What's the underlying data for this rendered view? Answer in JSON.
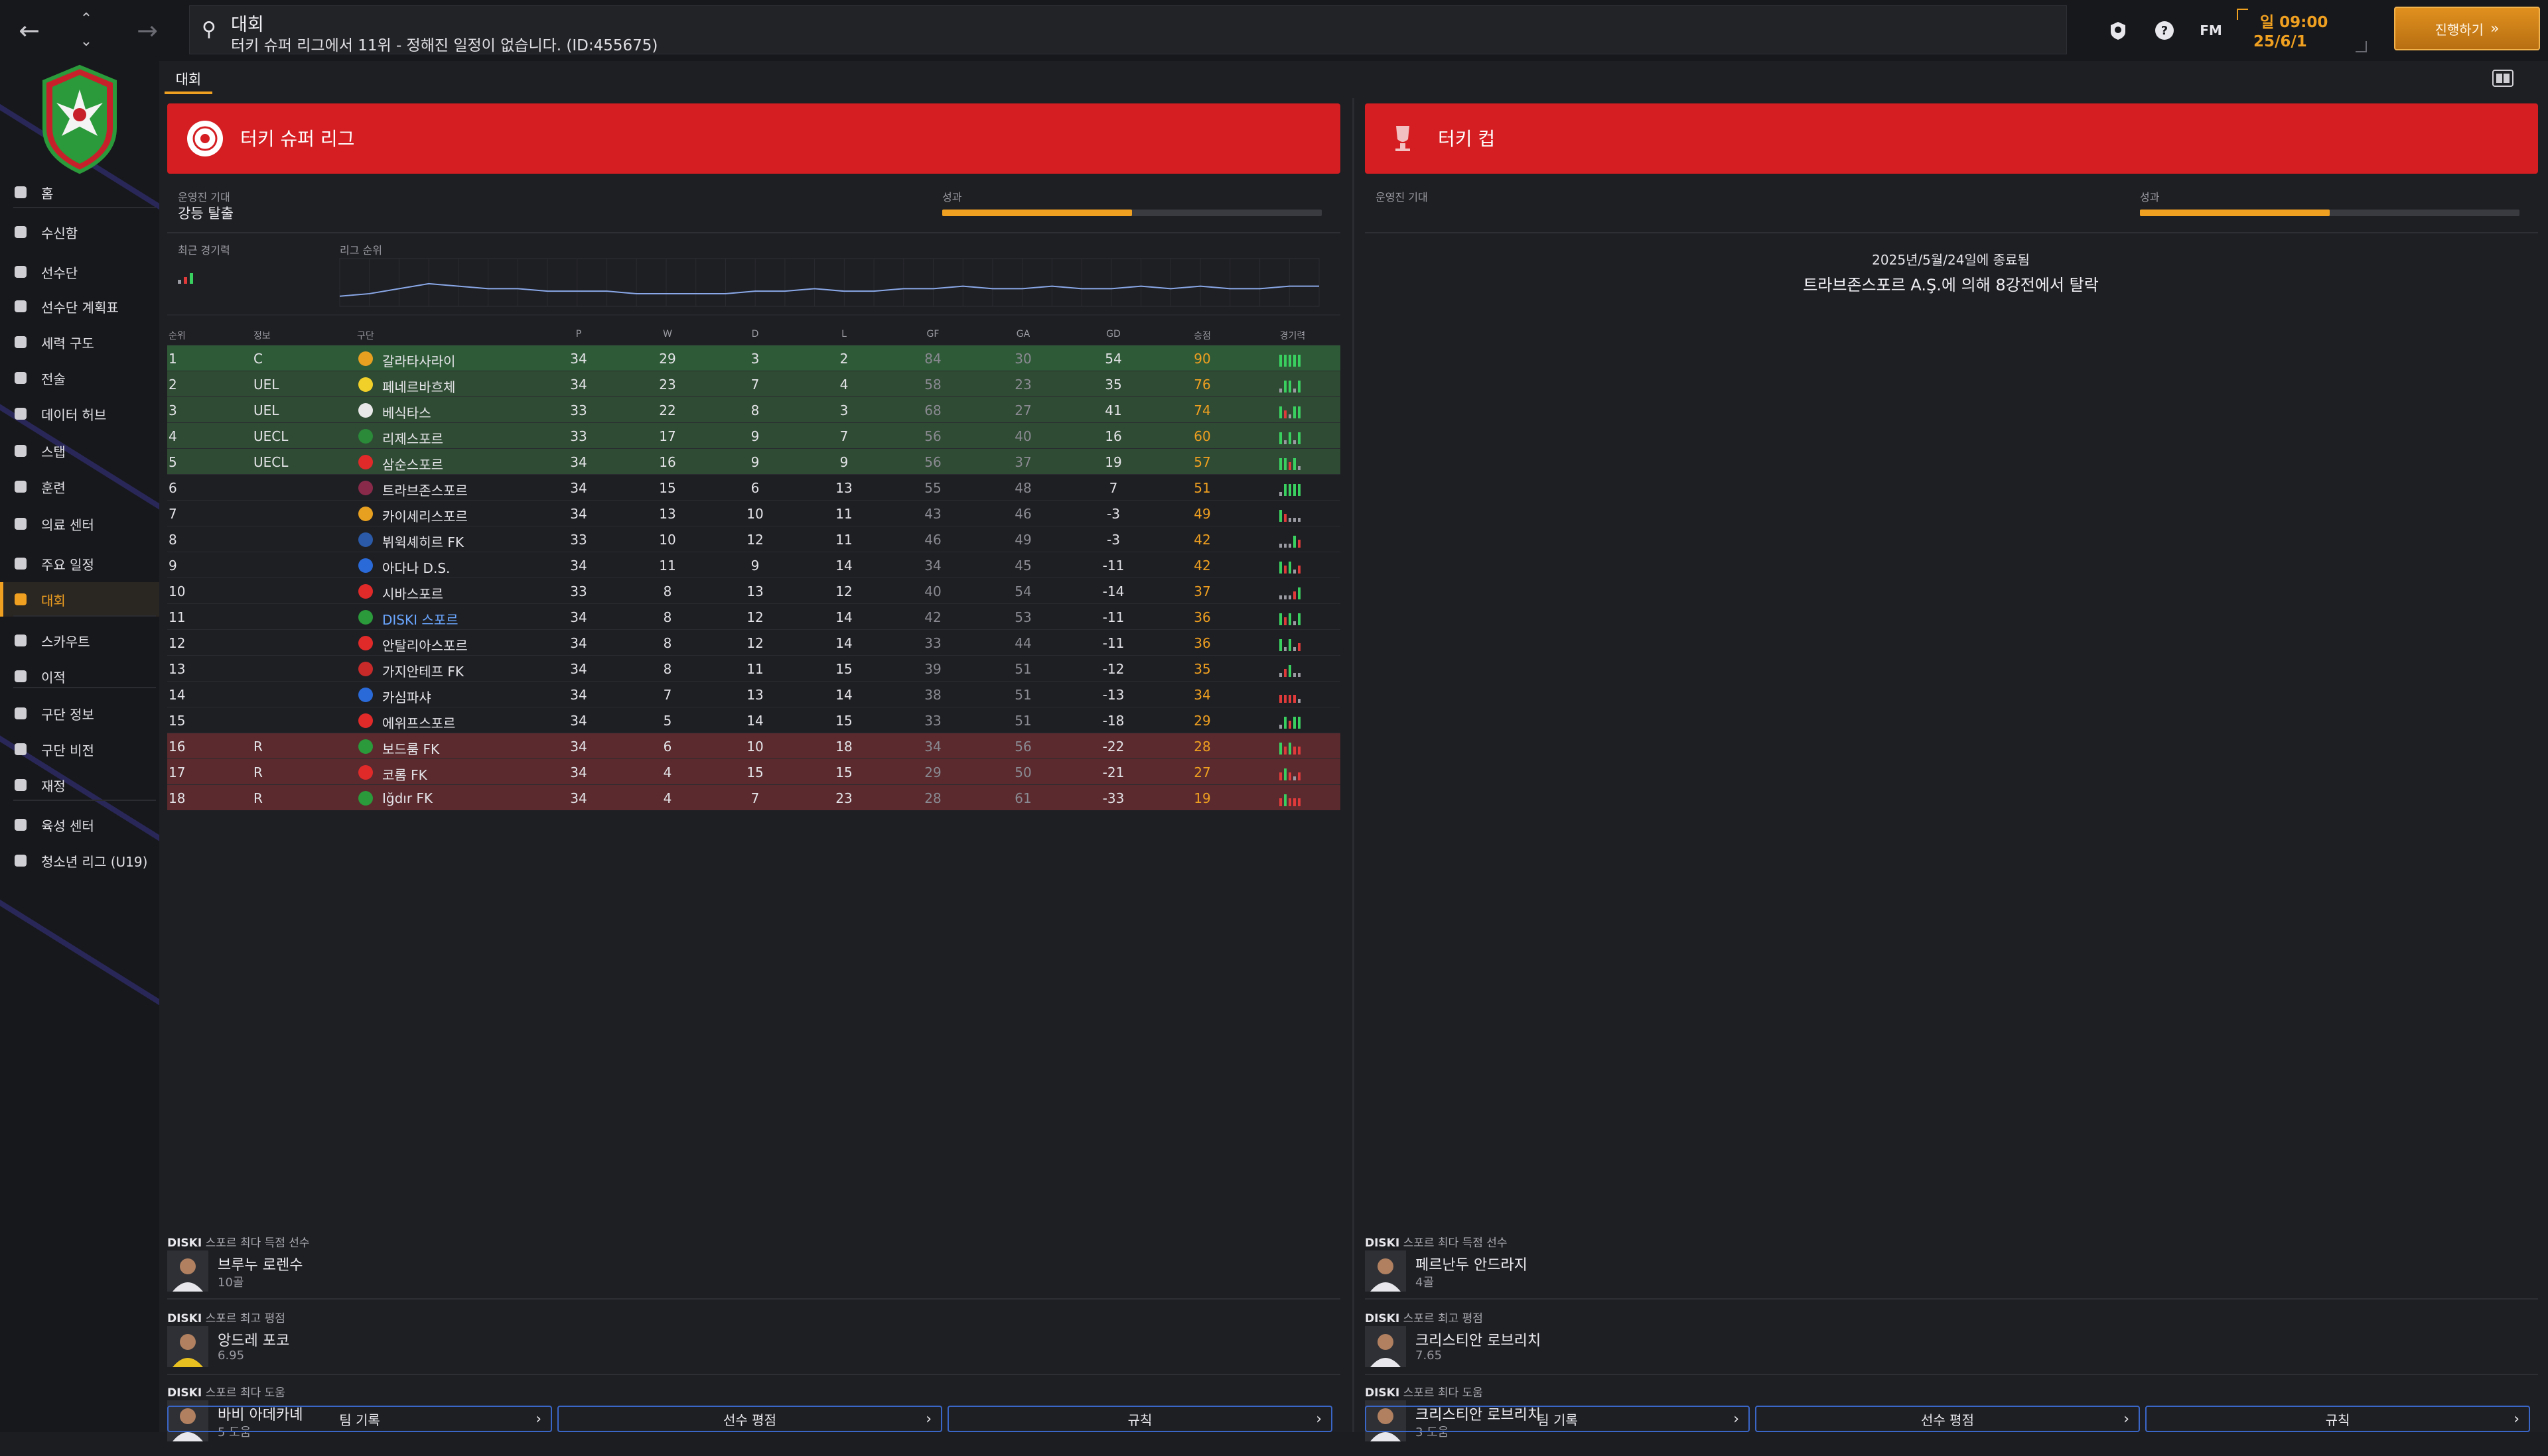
{
  "topbar": {
    "title": "대회",
    "message": "터키 슈퍼 리그에서 11위 - 정해진 일정이 없습니다. (ID:455675)",
    "fm_label": "FM",
    "date_line1": "일 09:00",
    "date_line2": "25/6/1",
    "continue_label": "진행하기"
  },
  "sidebar": {
    "items": [
      {
        "label": "홈",
        "icon": "home-icon"
      },
      {
        "label": "수신함",
        "icon": "inbox-icon"
      },
      {
        "label": "선수단",
        "icon": "shirt-icon"
      },
      {
        "label": "선수단 계획표",
        "icon": "clipboard-icon"
      },
      {
        "label": "세력 구도",
        "icon": "dynamics-icon"
      },
      {
        "label": "전술",
        "icon": "tactics-icon"
      },
      {
        "label": "데이터 허브",
        "icon": "data-hub-icon"
      },
      {
        "label": "스탭",
        "icon": "staff-icon"
      },
      {
        "label": "훈련",
        "icon": "training-icon"
      },
      {
        "label": "의료 센터",
        "icon": "medical-icon"
      },
      {
        "label": "주요 일정",
        "icon": "calendar-icon"
      },
      {
        "label": "대회",
        "icon": "trophy-icon"
      },
      {
        "label": "스카우트",
        "icon": "scout-icon"
      },
      {
        "label": "이적",
        "icon": "transfer-icon"
      },
      {
        "label": "구단 정보",
        "icon": "shield-icon"
      },
      {
        "label": "구단 비전",
        "icon": "vision-icon"
      },
      {
        "label": "재정",
        "icon": "finance-icon"
      },
      {
        "label": "육성 센터",
        "icon": "development-icon"
      },
      {
        "label": "청소년 리그 (U19)",
        "icon": "youth-icon"
      }
    ]
  },
  "main": {
    "tab": "대회"
  },
  "league": {
    "name": "터키 슈퍼 리그",
    "expectation_label": "운영진 기대",
    "expectation_value": "강등 탈출",
    "performance_label": "성과",
    "performance": 0.5,
    "recent_form_label": "최근 경기력",
    "league_position_label": "리그 순위",
    "position_history": [
      15,
      14,
      12,
      10,
      11,
      12,
      12,
      13,
      13,
      13,
      14,
      14,
      14,
      14,
      13,
      13,
      12,
      13,
      13,
      12,
      12,
      11,
      12,
      12,
      11,
      12,
      12,
      11,
      12,
      11,
      12,
      12,
      11,
      11
    ],
    "headers": {
      "pos": "순위",
      "info": "정보",
      "team": "구단",
      "p": "P",
      "w": "W",
      "d": "D",
      "l": "L",
      "gf": "GF",
      "ga": "GA",
      "gd": "GD",
      "pts": "승점",
      "form": "경기력"
    },
    "rows": [
      {
        "pos": "1",
        "info": "C",
        "team": "갈라타사라이",
        "p": "34",
        "w": "29",
        "d": "3",
        "l": "2",
        "gf": "84",
        "ga": "30",
        "gd": "54",
        "pts": "90",
        "zone": "g1",
        "color": "#e8a020",
        "form": "WWWWW"
      },
      {
        "pos": "2",
        "info": "UEL",
        "team": "페네르바흐체",
        "p": "34",
        "w": "23",
        "d": "7",
        "l": "4",
        "gf": "58",
        "ga": "23",
        "gd": "35",
        "pts": "76",
        "zone": "g",
        "color": "#f2d02a",
        "form": "DWWDW"
      },
      {
        "pos": "3",
        "info": "UEL",
        "team": "베식타스",
        "p": "33",
        "w": "22",
        "d": "8",
        "l": "3",
        "gf": "68",
        "ga": "27",
        "gd": "41",
        "pts": "74",
        "zone": "g",
        "color": "#e8e8e8",
        "form": "WLDWW"
      },
      {
        "pos": "4",
        "info": "UECL",
        "team": "리제스포르",
        "p": "33",
        "w": "17",
        "d": "9",
        "l": "7",
        "gf": "56",
        "ga": "40",
        "gd": "16",
        "pts": "60",
        "zone": "g",
        "color": "#2a8a3a",
        "form": "WDWDW"
      },
      {
        "pos": "5",
        "info": "UECL",
        "team": "삼순스포르",
        "p": "34",
        "w": "16",
        "d": "9",
        "l": "9",
        "gf": "56",
        "ga": "37",
        "gd": "19",
        "pts": "57",
        "zone": "g",
        "color": "#e02a2a",
        "form": "WWLWD"
      },
      {
        "pos": "6",
        "info": "",
        "team": "트라브존스포르",
        "p": "34",
        "w": "15",
        "d": "6",
        "l": "13",
        "gf": "55",
        "ga": "48",
        "gd": "7",
        "pts": "51",
        "zone": "",
        "color": "#8a2a4a",
        "form": "DWWWW"
      },
      {
        "pos": "7",
        "info": "",
        "team": "카이세리스포르",
        "p": "34",
        "w": "13",
        "d": "10",
        "l": "11",
        "gf": "43",
        "ga": "46",
        "gd": "-3",
        "pts": "49",
        "zone": "",
        "color": "#e8a020",
        "form": "WLDDD"
      },
      {
        "pos": "8",
        "info": "",
        "team": "뷔윅셰히르 FK",
        "p": "33",
        "w": "10",
        "d": "12",
        "l": "11",
        "gf": "46",
        "ga": "49",
        "gd": "-3",
        "pts": "42",
        "zone": "",
        "color": "#2a5aa8",
        "form": "DDDWL"
      },
      {
        "pos": "9",
        "info": "",
        "team": "아다나 D.S.",
        "p": "34",
        "w": "11",
        "d": "9",
        "l": "14",
        "gf": "34",
        "ga": "45",
        "gd": "-11",
        "pts": "42",
        "zone": "",
        "color": "#2a6ad8",
        "form": "WLWDL"
      },
      {
        "pos": "10",
        "info": "",
        "team": "시바스포르",
        "p": "33",
        "w": "8",
        "d": "13",
        "l": "12",
        "gf": "40",
        "ga": "54",
        "gd": "-14",
        "pts": "37",
        "zone": "",
        "color": "#e02a2a",
        "form": "DDDLW"
      },
      {
        "pos": "11",
        "info": "",
        "team": "DISKI 스포르",
        "p": "34",
        "w": "8",
        "d": "12",
        "l": "14",
        "gf": "42",
        "ga": "53",
        "gd": "-11",
        "pts": "36",
        "zone": "",
        "color": "#2a9a3a",
        "form": "WLWDW",
        "own": true
      },
      {
        "pos": "12",
        "info": "",
        "team": "안탈리아스포르",
        "p": "34",
        "w": "8",
        "d": "12",
        "l": "14",
        "gf": "33",
        "ga": "44",
        "gd": "-11",
        "pts": "36",
        "zone": "",
        "color": "#e02a2a",
        "form": "WDWDL"
      },
      {
        "pos": "13",
        "info": "",
        "team": "가지안테프 FK",
        "p": "34",
        "w": "8",
        "d": "11",
        "l": "15",
        "gf": "39",
        "ga": "51",
        "gd": "-12",
        "pts": "35",
        "zone": "",
        "color": "#c82a2a",
        "form": "DLWDD"
      },
      {
        "pos": "14",
        "info": "",
        "team": "카심파샤",
        "p": "34",
        "w": "7",
        "d": "13",
        "l": "14",
        "gf": "38",
        "ga": "51",
        "gd": "-13",
        "pts": "34",
        "zone": "",
        "color": "#2a6ad8",
        "form": "LLLLD"
      },
      {
        "pos": "15",
        "info": "",
        "team": "에위프스포르",
        "p": "34",
        "w": "5",
        "d": "14",
        "l": "15",
        "gf": "33",
        "ga": "51",
        "gd": "-18",
        "pts": "29",
        "zone": "",
        "color": "#e02a2a",
        "form": "DWLWW"
      },
      {
        "pos": "16",
        "info": "R",
        "team": "보드룸 FK",
        "p": "34",
        "w": "6",
        "d": "10",
        "l": "18",
        "gf": "34",
        "ga": "56",
        "gd": "-22",
        "pts": "28",
        "zone": "r",
        "color": "#2a9a3a",
        "form": "WLWLL"
      },
      {
        "pos": "17",
        "info": "R",
        "team": "코롬 FK",
        "p": "34",
        "w": "4",
        "d": "15",
        "l": "15",
        "gf": "29",
        "ga": "50",
        "gd": "-21",
        "pts": "27",
        "zone": "r",
        "color": "#e02a2a",
        "form": "LWLDL"
      },
      {
        "pos": "18",
        "info": "R",
        "team": "Iğdır FK",
        "p": "34",
        "w": "4",
        "d": "7",
        "l": "23",
        "gf": "28",
        "ga": "61",
        "gd": "-33",
        "pts": "19",
        "zone": "r",
        "color": "#2a9a3a",
        "form": "LWLLL"
      }
    ],
    "stats": [
      {
        "title_prefix": "DISKI",
        "title": " 스포르 최다 득점 선수",
        "name": "브루누 로렌수",
        "stat": "10골"
      },
      {
        "title_prefix": "DISKI",
        "title": " 스포르 최고 평점",
        "name": "앙드레 포코",
        "stat": "6.95"
      },
      {
        "title_prefix": "DISKI",
        "title": " 스포르 최다 도움",
        "name": "바비 아데카녜",
        "stat": "5 도움"
      }
    ],
    "buttons": [
      "팀 기록",
      "선수 평점",
      "규칙"
    ]
  },
  "cup": {
    "name": "터키 컵",
    "expectation_label": "운영진 기대",
    "performance_label": "성과",
    "performance": 0.5,
    "result_date": "2025년/5월/24일에 종료됨",
    "result_text": "트라브존스포르 A.Ş.에 의해 8강전에서 탈락",
    "stats": [
      {
        "title_prefix": "DISKI",
        "title": " 스포르 최다 득점 선수",
        "name": "페르난두 안드라지",
        "stat": "4골"
      },
      {
        "title_prefix": "DISKI",
        "title": " 스포르 최고 평점",
        "name": "크리스티안 로브리치",
        "stat": "7.65"
      },
      {
        "title_prefix": "DISKI",
        "title": " 스포르 최다 도움",
        "name": "크리스티안 로브리치",
        "stat": "3 도움"
      }
    ],
    "buttons": [
      "팀 기록",
      "선수 평점",
      "규칙"
    ]
  },
  "colors": {
    "accent": "#f0a020",
    "header_red": "#d41e22",
    "win": "#3ad060",
    "loss": "#e03a3a",
    "draw": "#9a9aa2"
  }
}
